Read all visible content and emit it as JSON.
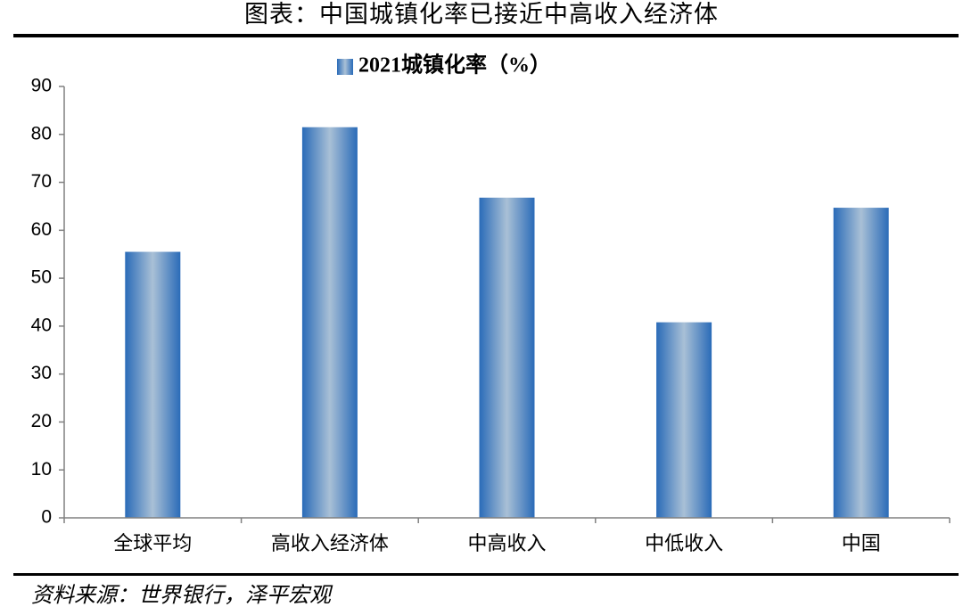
{
  "chart_data": {
    "type": "bar",
    "title": "图表：中国城镇化率已接近中高收入经济体",
    "categories": [
      "全球平均",
      "高收入经济体",
      "中高收入",
      "中低收入",
      "中国"
    ],
    "series": [
      {
        "name": "2021城镇化率（%）",
        "color": "#2a6bb8",
        "values": [
          55.5,
          81.5,
          66.8,
          40.8,
          64.7
        ]
      }
    ],
    "ylim": [
      0,
      90
    ],
    "yticks": [
      0,
      10,
      20,
      30,
      40,
      50,
      60,
      70,
      80,
      90
    ],
    "source": "资料来源：世界银行，泽平宏观"
  }
}
